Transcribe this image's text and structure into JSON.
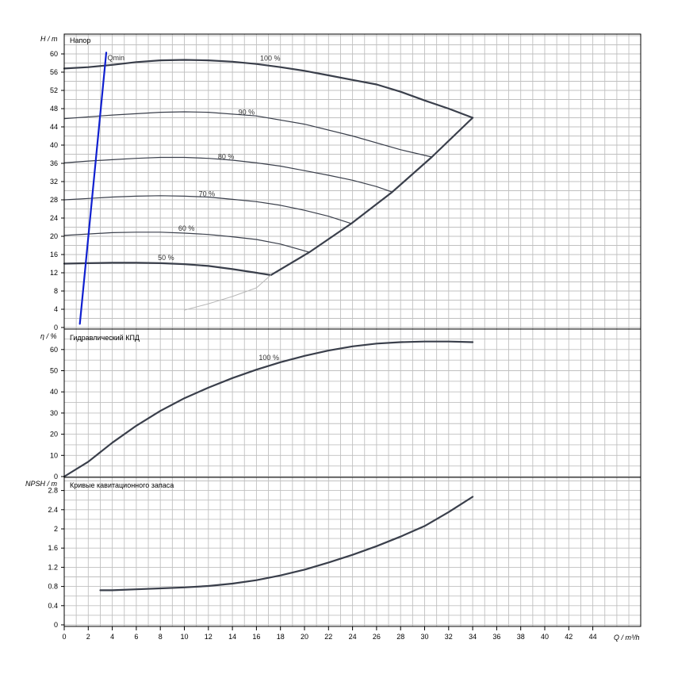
{
  "chart_data": [
    {
      "type": "line",
      "title": "Напор",
      "ylabel": "H / m",
      "xlabel": "Q / m³/h",
      "xlim": [
        0,
        48
      ],
      "ylim": [
        0,
        64
      ],
      "x_ticks": [
        0,
        2,
        4,
        6,
        8,
        10,
        12,
        14,
        16,
        18,
        20,
        22,
        24,
        26,
        28,
        30,
        32,
        34,
        36,
        38,
        40,
        42,
        44
      ],
      "y_ticks": [
        0,
        4,
        8,
        12,
        16,
        20,
        24,
        28,
        32,
        36,
        40,
        44,
        48,
        52,
        56,
        60
      ],
      "grid": true,
      "series": [
        {
          "name": "100 %",
          "label_at": [
            16.3,
            58.5
          ],
          "x": [
            0,
            2,
            4,
            6,
            8,
            10,
            12,
            14,
            16,
            18,
            20,
            22,
            24,
            26,
            28,
            30,
            32,
            34
          ],
          "y": [
            56.8,
            57.1,
            57.6,
            58.2,
            58.6,
            58.7,
            58.6,
            58.3,
            57.8,
            57.1,
            56.3,
            55.3,
            54.3,
            53.3,
            51.7,
            49.8,
            48.0,
            46.0
          ],
          "color": "#3a3f4b",
          "width": 2.2
        },
        {
          "name": "90 %",
          "label_at": [
            14.5,
            46.7
          ],
          "x": [
            0,
            4,
            8,
            10,
            12,
            16,
            20,
            24,
            28,
            30.6
          ],
          "y": [
            45.8,
            46.6,
            47.2,
            47.3,
            47.2,
            46.4,
            44.6,
            42.0,
            39.0,
            37.4
          ],
          "color": "#3a3f4b",
          "width": 1.2
        },
        {
          "name": "80 %",
          "label_at": [
            12.8,
            37.0
          ],
          "x": [
            0,
            2,
            4,
            6,
            8,
            10,
            12,
            14,
            16,
            18,
            20,
            22,
            24,
            26,
            27.3
          ],
          "y": [
            36.1,
            36.5,
            36.8,
            37.1,
            37.3,
            37.3,
            37.1,
            36.7,
            36.1,
            35.4,
            34.4,
            33.4,
            32.3,
            30.9,
            29.7
          ],
          "color": "#3a3f4b",
          "width": 1.2
        },
        {
          "name": "70 %",
          "label_at": [
            11.2,
            28.8
          ],
          "x": [
            0,
            2,
            4,
            6,
            8,
            10,
            12,
            14,
            16,
            18,
            20,
            22,
            23.9
          ],
          "y": [
            28.0,
            28.3,
            28.6,
            28.8,
            28.9,
            28.8,
            28.6,
            28.1,
            27.6,
            26.8,
            25.7,
            24.4,
            22.8
          ],
          "color": "#3a3f4b",
          "width": 1.2
        },
        {
          "name": "60 %",
          "label_at": [
            9.5,
            21.2
          ],
          "x": [
            0,
            2,
            4,
            6,
            8,
            10,
            12,
            14,
            16,
            18,
            20.4
          ],
          "y": [
            20.2,
            20.5,
            20.8,
            20.9,
            20.9,
            20.7,
            20.4,
            19.9,
            19.3,
            18.3,
            16.5
          ],
          "color": "#3a3f4b",
          "width": 1.2
        },
        {
          "name": "50 %",
          "label_at": [
            7.8,
            14.8
          ],
          "x": [
            0,
            2,
            4,
            6,
            8,
            10,
            12,
            14,
            16,
            17.2
          ],
          "y": [
            14.0,
            14.1,
            14.2,
            14.2,
            14.1,
            13.9,
            13.5,
            12.8,
            12.0,
            11.5
          ],
          "color": "#3a3f4b",
          "width": 2.2
        },
        {
          "name": "",
          "x": [
            17.2,
            20.4,
            23.9,
            27.3,
            30.6,
            34.0
          ],
          "y": [
            11.5,
            16.5,
            22.8,
            29.7,
            37.4,
            46.0
          ],
          "color": "#3a3f4b",
          "width": 2.2
        },
        {
          "name": "",
          "x": [
            10,
            12,
            14,
            16,
            17.2
          ],
          "y": [
            3.8,
            5.2,
            6.8,
            8.7,
            11.5
          ],
          "color": "#b8b8b8",
          "width": 1.0
        },
        {
          "name": "Qmin",
          "label_at": [
            3.6,
            58.6
          ],
          "x": [
            1.3,
            3.5
          ],
          "y": [
            0.8,
            60.3
          ],
          "color": "#1020d0",
          "width": 2.2
        }
      ]
    },
    {
      "type": "line",
      "title": "Гидравлический КПД",
      "ylabel": "η / %",
      "xlim": [
        0,
        48
      ],
      "ylim": [
        0,
        70
      ],
      "y_ticks": [
        0,
        10,
        20,
        30,
        40,
        50,
        60
      ],
      "grid": true,
      "series": [
        {
          "name": "100 %",
          "label_at": [
            16.2,
            55
          ],
          "x": [
            0,
            2,
            4,
            6,
            8,
            10,
            12,
            14,
            16,
            18,
            20,
            22,
            24,
            26,
            28,
            30,
            32,
            34
          ],
          "y": [
            0,
            7,
            16,
            24,
            31,
            37,
            42,
            46.5,
            50.5,
            54,
            57,
            59.5,
            61.5,
            62.8,
            63.5,
            63.8,
            63.8,
            63.5
          ],
          "color": "#3a3f4b",
          "width": 2.2
        }
      ]
    },
    {
      "type": "line",
      "title": "Кривые кавитационного запаса",
      "ylabel": "NPSH / m",
      "xlim": [
        0,
        48
      ],
      "ylim": [
        0,
        3.0
      ],
      "y_ticks": [
        0,
        0.4,
        0.8,
        1.2,
        1.6,
        2,
        2.4,
        2.8
      ],
      "y_tick_labels": [
        "0",
        "0.4",
        "0.8",
        "1.2",
        "1.6",
        "2",
        "2.4",
        "2.8"
      ],
      "grid": true,
      "series": [
        {
          "name": "",
          "x": [
            3,
            4,
            6,
            8,
            10,
            12,
            14,
            16,
            18,
            20,
            22,
            24,
            26,
            28,
            30,
            32,
            34
          ],
          "y": [
            0.72,
            0.72,
            0.74,
            0.76,
            0.78,
            0.81,
            0.86,
            0.93,
            1.03,
            1.15,
            1.3,
            1.46,
            1.64,
            1.84,
            2.06,
            2.35,
            2.67
          ],
          "color": "#3a3f4b",
          "width": 2.2
        }
      ]
    }
  ]
}
